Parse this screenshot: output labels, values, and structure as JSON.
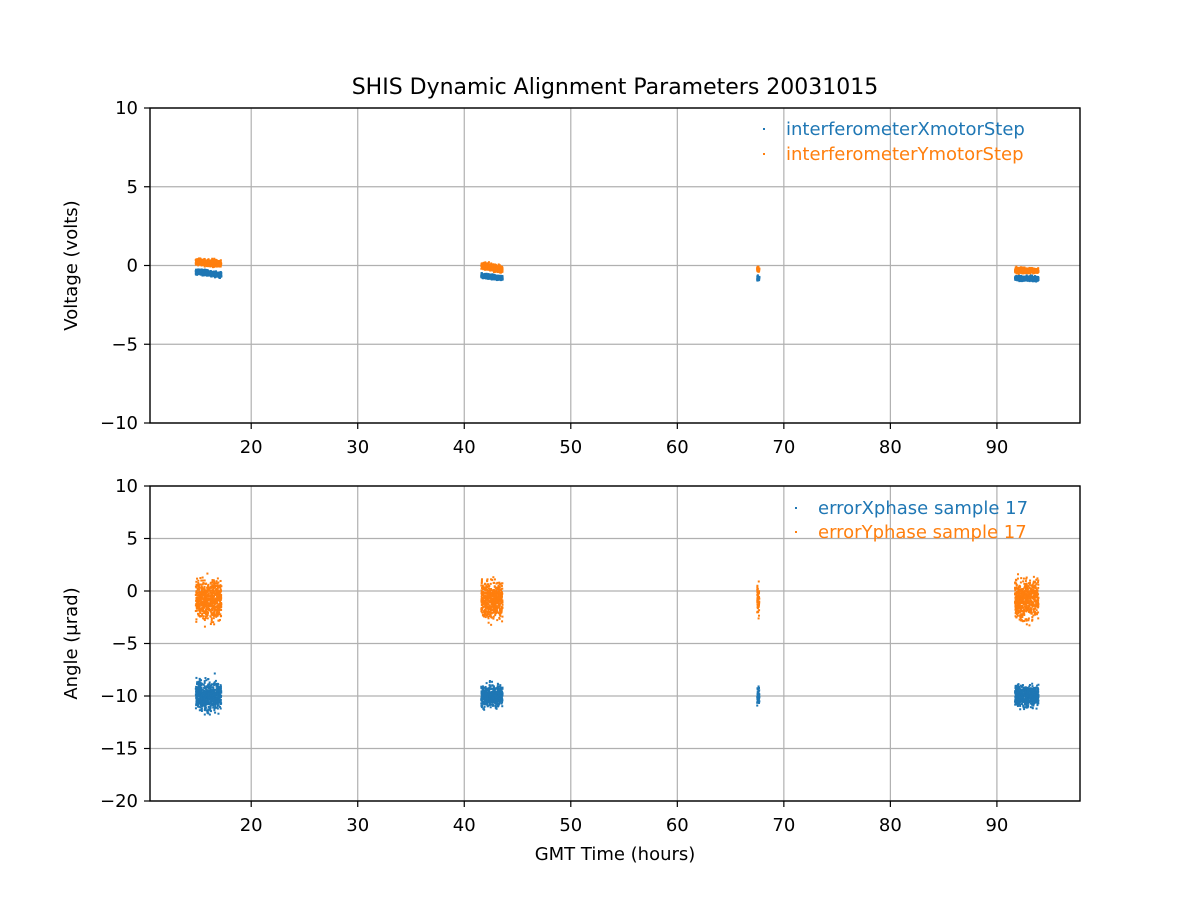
{
  "chart_data": {
    "title": "SHIS Dynamic Alignment Parameters 20031015",
    "colors": {
      "blue": "#1f77b4",
      "orange": "#ff7f0e"
    },
    "grid": true,
    "xlabel": "GMT Time (hours)",
    "xlim": [
      10.5,
      97.8
    ],
    "xticks": [
      20,
      30,
      40,
      50,
      60,
      70,
      80,
      90
    ],
    "x_tick_labels": [
      "20",
      "30",
      "40",
      "50",
      "60",
      "70",
      "80",
      "90"
    ],
    "panels": [
      {
        "type": "scatter",
        "ylabel": "Voltage (volts)",
        "ylim": [
          -10,
          10
        ],
        "yticks": [
          10,
          5,
          0,
          -5,
          -10
        ],
        "y_tick_labels": [
          "10",
          "5",
          "0",
          "−5",
          "−10"
        ],
        "legend_position": "top-right",
        "series": [
          {
            "name": "interferometerXmotorStep",
            "color": "#1f77b4",
            "segments": [
              {
                "x": [
                  14.8,
                  17.2
                ],
                "y_start": -0.4,
                "y_end": -0.6,
                "noise": 0.08
              },
              {
                "x": [
                  41.6,
                  43.6
                ],
                "y_start": -0.65,
                "y_end": -0.8,
                "noise": 0.07
              },
              {
                "x": [
                  67.5,
                  67.7
                ],
                "y_start": -0.8,
                "y_end": -0.8,
                "noise": 0.06
              },
              {
                "x": [
                  91.7,
                  93.9
                ],
                "y_start": -0.8,
                "y_end": -0.85,
                "noise": 0.07
              }
            ]
          },
          {
            "name": "interferometerYmotorStep",
            "color": "#ff7f0e",
            "segments": [
              {
                "x": [
                  14.8,
                  17.2
                ],
                "y_start": 0.25,
                "y_end": 0.1,
                "noise": 0.1
              },
              {
                "x": [
                  41.6,
                  43.6
                ],
                "y_start": 0.0,
                "y_end": -0.25,
                "noise": 0.1
              },
              {
                "x": [
                  67.5,
                  67.7
                ],
                "y_start": -0.2,
                "y_end": -0.3,
                "noise": 0.08
              },
              {
                "x": [
                  91.7,
                  93.9
                ],
                "y_start": -0.3,
                "y_end": -0.35,
                "noise": 0.08
              }
            ]
          }
        ]
      },
      {
        "type": "scatter",
        "ylabel": "Angle (μrad)",
        "ylim": [
          -20,
          10
        ],
        "yticks": [
          10,
          5,
          0,
          -5,
          -10,
          -15,
          -20
        ],
        "y_tick_labels": [
          "10",
          "5",
          "0",
          "−5",
          "−10",
          "−15",
          "−20"
        ],
        "legend_position": "top-right",
        "series": [
          {
            "name": "errorXphase sample 17",
            "color": "#1f77b4",
            "segments": [
              {
                "x": [
                  14.8,
                  17.2
                ],
                "y_start": -10.0,
                "y_end": -10.0,
                "noise": 0.7
              },
              {
                "x": [
                  41.6,
                  43.6
                ],
                "y_start": -10.0,
                "y_end": -10.0,
                "noise": 0.5
              },
              {
                "x": [
                  67.5,
                  67.7
                ],
                "y_start": -10.0,
                "y_end": -10.0,
                "noise": 0.4
              },
              {
                "x": [
                  91.7,
                  93.9
                ],
                "y_start": -10.0,
                "y_end": -10.0,
                "noise": 0.5
              }
            ]
          },
          {
            "name": "errorYphase sample 17",
            "color": "#ff7f0e",
            "segments": [
              {
                "x": [
                  14.8,
                  17.2
                ],
                "y_start": -0.8,
                "y_end": -0.8,
                "noise": 0.9
              },
              {
                "x": [
                  41.6,
                  43.6
                ],
                "y_start": -0.8,
                "y_end": -0.8,
                "noise": 0.9
              },
              {
                "x": [
                  67.5,
                  67.7
                ],
                "y_start": -0.8,
                "y_end": -0.8,
                "noise": 0.8
              },
              {
                "x": [
                  91.7,
                  93.9
                ],
                "y_start": -0.8,
                "y_end": -0.8,
                "noise": 0.9
              }
            ]
          }
        ]
      }
    ]
  }
}
